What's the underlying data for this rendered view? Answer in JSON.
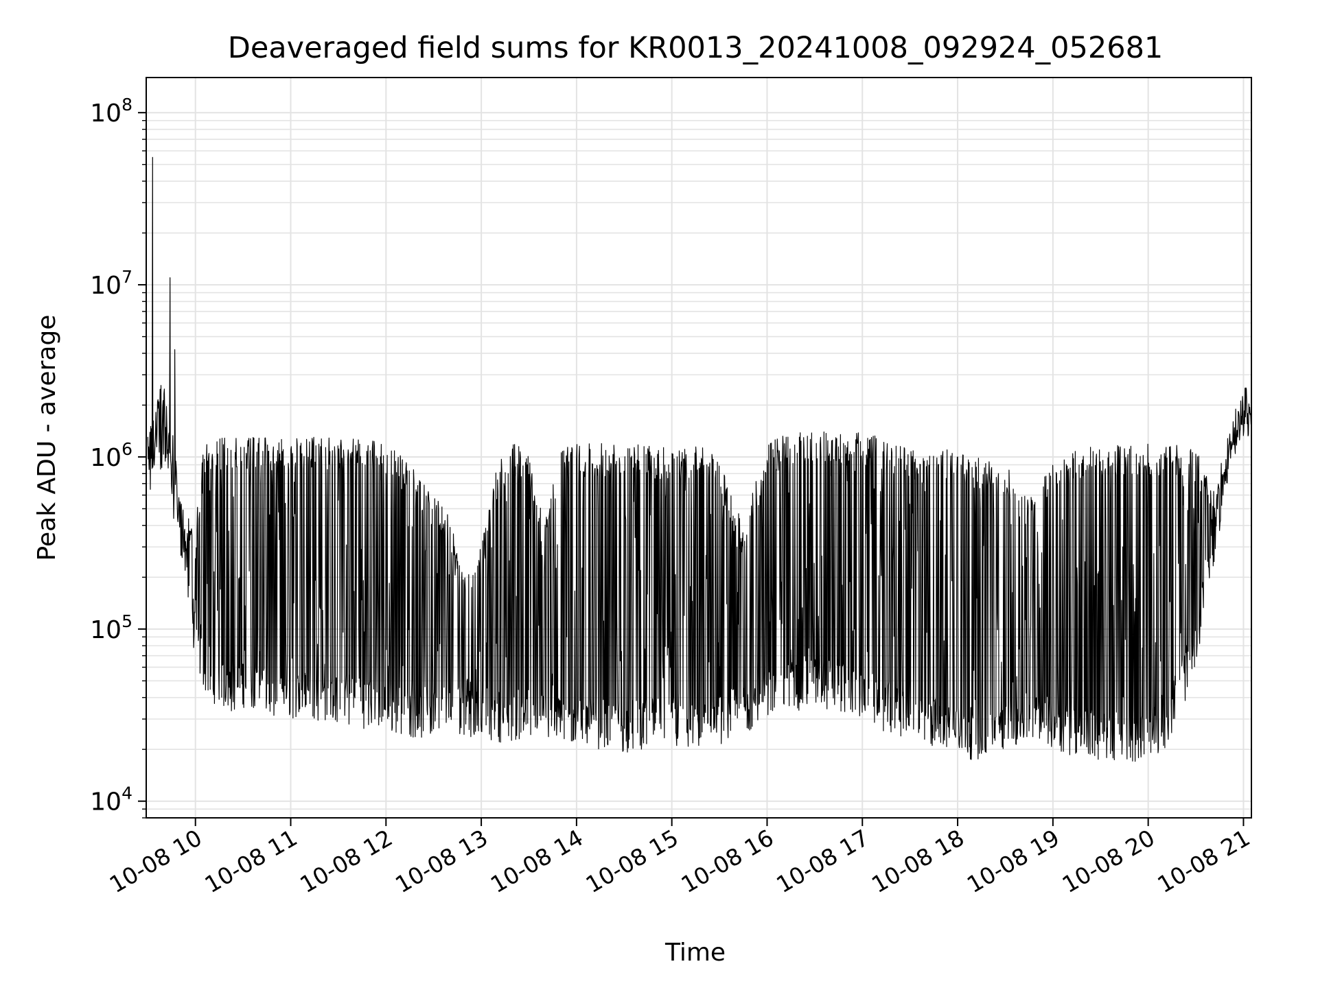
{
  "chart_data": {
    "type": "line",
    "title": "Deaveraged field sums for KR0013_20241008_092924_052681",
    "xlabel": "Time",
    "ylabel": "Peak ADU - average",
    "x_ticks": [
      "10-08 10",
      "10-08 11",
      "10-08 12",
      "10-08 13",
      "10-08 14",
      "10-08 15",
      "10-08 16",
      "10-08 17",
      "10-08 18",
      "10-08 19",
      "10-08 20",
      "10-08 21"
    ],
    "x_tick_times": [
      "2024-10-08 10:00",
      "2024-10-08 11:00",
      "2024-10-08 12:00",
      "2024-10-08 13:00",
      "2024-10-08 14:00",
      "2024-10-08 15:00",
      "2024-10-08 16:00",
      "2024-10-08 17:00",
      "2024-10-08 18:00",
      "2024-10-08 19:00",
      "2024-10-08 20:00",
      "2024-10-08 21:00"
    ],
    "y_ticks": [
      {
        "base": "10",
        "exp": "4"
      },
      {
        "base": "10",
        "exp": "5"
      },
      {
        "base": "10",
        "exp": "6"
      },
      {
        "base": "10",
        "exp": "7"
      },
      {
        "base": "10",
        "exp": "8"
      }
    ],
    "y_scale": "log",
    "xlim": [
      "2024-10-08 09:29",
      "2024-10-08 21:05"
    ],
    "ylim": [
      8000,
      160000000
    ],
    "grid": true,
    "line_color": "#000000",
    "series": [
      {
        "x": [
          "2024-10-08 09:30",
          "2024-10-08 09:35",
          "2024-10-08 09:40",
          "2024-10-08 09:45",
          "2024-10-08 09:50",
          "2024-10-08 09:55",
          "2024-10-08 10:00",
          "2024-10-08 10:05",
          "2024-10-08 10:10",
          "2024-10-08 10:15",
          "2024-10-08 10:20",
          "2024-10-08 10:25",
          "2024-10-08 10:30",
          "2024-10-08 10:35",
          "2024-10-08 10:40",
          "2024-10-08 10:45",
          "2024-10-08 10:50",
          "2024-10-08 10:55",
          "2024-10-08 11:00",
          "2024-10-08 11:10",
          "2024-10-08 11:20",
          "2024-10-08 11:30",
          "2024-10-08 11:40",
          "2024-10-08 11:50",
          "2024-10-08 12:00",
          "2024-10-08 12:10",
          "2024-10-08 12:20",
          "2024-10-08 12:30",
          "2024-10-08 12:40",
          "2024-10-08 12:50",
          "2024-10-08 13:00",
          "2024-10-08 13:10",
          "2024-10-08 13:20",
          "2024-10-08 13:30",
          "2024-10-08 13:40",
          "2024-10-08 13:50",
          "2024-10-08 14:00",
          "2024-10-08 14:15",
          "2024-10-08 14:30",
          "2024-10-08 14:45",
          "2024-10-08 15:00",
          "2024-10-08 15:15",
          "2024-10-08 15:30",
          "2024-10-08 15:45",
          "2024-10-08 16:00",
          "2024-10-08 16:15",
          "2024-10-08 16:30",
          "2024-10-08 16:45",
          "2024-10-08 17:00",
          "2024-10-08 17:15",
          "2024-10-08 17:30",
          "2024-10-08 17:45",
          "2024-10-08 18:00",
          "2024-10-08 18:15",
          "2024-10-08 18:30",
          "2024-10-08 18:45",
          "2024-10-08 19:00",
          "2024-10-08 19:15",
          "2024-10-08 19:30",
          "2024-10-08 19:45",
          "2024-10-08 20:00",
          "2024-10-08 20:10",
          "2024-10-08 20:20",
          "2024-10-08 20:30",
          "2024-10-08 20:40",
          "2024-10-08 20:50",
          "2024-10-08 21:00",
          "2024-10-08 21:05"
        ],
        "low": [
          400000,
          900000,
          700000,
          500000,
          300000,
          150000,
          60000,
          45000,
          38000,
          35000,
          33000,
          32000,
          35000,
          33000,
          32000,
          31000,
          30000,
          30000,
          30000,
          29000,
          29000,
          28000,
          27000,
          26000,
          25000,
          24000,
          23000,
          23000,
          25000,
          24000,
          23000,
          22000,
          22000,
          23000,
          22000,
          21000,
          21000,
          20000,
          19000,
          20000,
          20000,
          19000,
          21000,
          24000,
          30000,
          33000,
          34000,
          33000,
          30000,
          25000,
          22000,
          20000,
          18000,
          17000,
          20000,
          22000,
          20000,
          18000,
          17000,
          17000,
          17000,
          20000,
          30000,
          60000,
          200000,
          700000,
          1300000,
          1300000
        ],
        "high": [
          1500000,
          2000000,
          3000000,
          1500000,
          700000,
          450000,
          400000,
          1200000,
          1300000,
          1300000,
          1350000,
          1300000,
          1300000,
          1300000,
          1300000,
          1300000,
          1300000,
          1300000,
          1300000,
          1300000,
          1300000,
          1300000,
          1300000,
          1300000,
          1200000,
          1000000,
          800000,
          600000,
          450000,
          200000,
          300000,
          900000,
          1200000,
          1100000,
          400000,
          1300000,
          1200000,
          1200000,
          1200000,
          1200000,
          1100000,
          1200000,
          1000000,
          400000,
          1200000,
          1400000,
          1400000,
          1400000,
          1400000,
          1300000,
          1100000,
          1100000,
          1100000,
          1000000,
          900000,
          600000,
          900000,
          1100000,
          1200000,
          1200000,
          1200000,
          1200000,
          1200000,
          1100000,
          700000,
          1400000,
          2500000,
          2700000
        ]
      }
    ],
    "spikes": [
      {
        "x": "2024-10-08 09:33",
        "y": 55000000
      },
      {
        "x": "2024-10-08 09:44",
        "y": 11000000
      },
      {
        "x": "2024-10-08 09:47",
        "y": 4200000
      }
    ]
  }
}
